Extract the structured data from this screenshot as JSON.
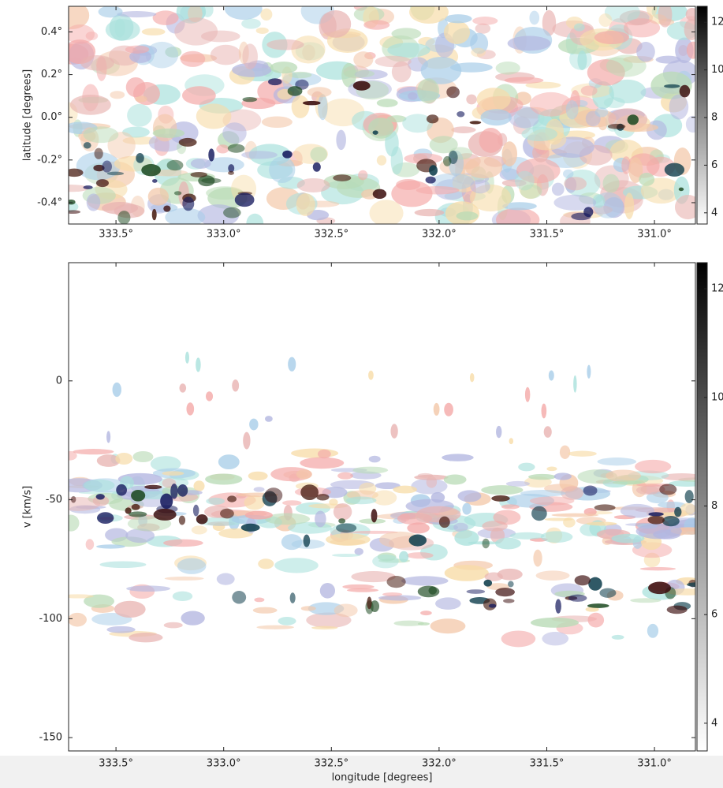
{
  "chart_data": [
    {
      "type": "image",
      "ylabel": "latitude [degrees]",
      "xlim": [
        333.72,
        330.81
      ],
      "xticks": [
        {
          "value": 333.5,
          "label": "333.5°"
        },
        {
          "value": 333.0,
          "label": "333.0°"
        },
        {
          "value": 332.5,
          "label": "332.5°"
        },
        {
          "value": 332.0,
          "label": "332.0°"
        },
        {
          "value": 331.5,
          "label": "331.5°"
        },
        {
          "value": 331.0,
          "label": "331.0°"
        }
      ],
      "ylim": [
        -0.5,
        0.52
      ],
      "yticks": [
        {
          "value": -0.4,
          "label": "-0.4°"
        },
        {
          "value": -0.2,
          "label": "-0.2°"
        },
        {
          "value": 0.0,
          "label": "0.0°"
        },
        {
          "value": 0.2,
          "label": "0.2°"
        },
        {
          "value": 0.4,
          "label": "0.4°"
        }
      ],
      "colorbar": {
        "lim": [
          3.53,
          12.67
        ],
        "ticks": [
          4,
          6,
          8,
          10,
          12
        ]
      }
    },
    {
      "type": "image",
      "xlabel": "longitude [degrees]",
      "ylabel": "v [km/s]",
      "xlim": [
        333.72,
        330.81
      ],
      "xticks": [
        {
          "value": 333.5,
          "label": "333.5°"
        },
        {
          "value": 333.0,
          "label": "333.0°"
        },
        {
          "value": 332.5,
          "label": "332.5°"
        },
        {
          "value": 332.0,
          "label": "332.0°"
        },
        {
          "value": 331.5,
          "label": "331.5°"
        },
        {
          "value": 331.0,
          "label": "331.0°"
        }
      ],
      "ylim": [
        -155.6,
        49.7
      ],
      "yticks": [
        -150,
        -100,
        -50,
        0
      ],
      "colorbar": {
        "lim": [
          3.49,
          12.48
        ],
        "ticks": [
          4,
          6,
          8,
          10,
          12
        ]
      }
    }
  ]
}
